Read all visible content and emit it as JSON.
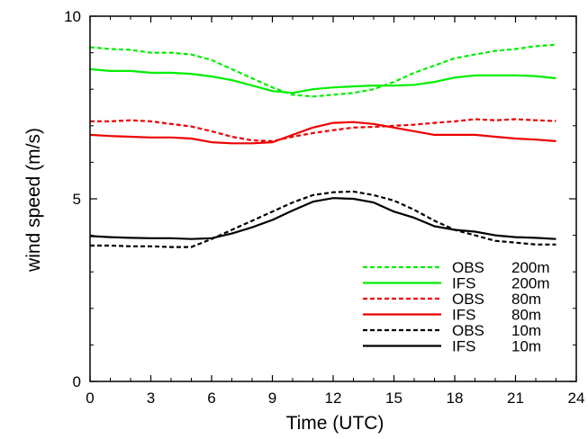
{
  "chart_data": {
    "type": "line",
    "title": "",
    "xlabel": "Time (UTC)",
    "ylabel": "wind speed (m/s)",
    "xlim": [
      0,
      24
    ],
    "ylim": [
      0,
      10
    ],
    "xticks": [
      0,
      3,
      6,
      9,
      12,
      15,
      18,
      21,
      24
    ],
    "yticks": [
      0,
      5,
      10
    ],
    "grid": false,
    "legend_position": "bottom-right",
    "series": [
      {
        "name": "OBS",
        "height": "200m",
        "color": "#00ee00",
        "style": "dashed",
        "x": [
          0,
          1,
          2,
          3,
          4,
          5,
          6,
          7,
          8,
          9,
          10,
          11,
          12,
          13,
          14,
          15,
          16,
          17,
          18,
          19,
          20,
          21,
          22,
          23
        ],
        "y": [
          9.15,
          9.1,
          9.08,
          9.0,
          9.0,
          8.95,
          8.8,
          8.55,
          8.3,
          8.05,
          7.85,
          7.8,
          7.85,
          7.9,
          8.0,
          8.2,
          8.45,
          8.65,
          8.85,
          8.95,
          9.05,
          9.1,
          9.18,
          9.22
        ]
      },
      {
        "name": "IFS",
        "height": "200m",
        "color": "#00ee00",
        "style": "solid",
        "x": [
          0,
          1,
          2,
          3,
          4,
          5,
          6,
          7,
          8,
          9,
          10,
          11,
          12,
          13,
          14,
          15,
          16,
          17,
          18,
          19,
          20,
          21,
          22,
          23
        ],
        "y": [
          8.55,
          8.5,
          8.5,
          8.45,
          8.45,
          8.42,
          8.35,
          8.25,
          8.1,
          7.95,
          7.9,
          8.0,
          8.05,
          8.08,
          8.1,
          8.1,
          8.12,
          8.2,
          8.32,
          8.38,
          8.38,
          8.38,
          8.36,
          8.3
        ]
      },
      {
        "name": "OBS",
        "height": "80m",
        "color": "#ee0000",
        "style": "dashed",
        "x": [
          0,
          1,
          2,
          3,
          4,
          5,
          6,
          7,
          8,
          9,
          10,
          11,
          12,
          13,
          14,
          15,
          16,
          17,
          18,
          19,
          20,
          21,
          22,
          23
        ],
        "y": [
          7.12,
          7.12,
          7.15,
          7.12,
          7.05,
          6.98,
          6.85,
          6.7,
          6.6,
          6.58,
          6.7,
          6.8,
          6.88,
          6.95,
          6.97,
          7.0,
          7.03,
          7.08,
          7.12,
          7.18,
          7.15,
          7.18,
          7.15,
          7.13
        ]
      },
      {
        "name": "IFS",
        "height": "80m",
        "color": "#ee0000",
        "style": "solid",
        "x": [
          0,
          1,
          2,
          3,
          4,
          5,
          6,
          7,
          8,
          9,
          10,
          11,
          12,
          13,
          14,
          15,
          16,
          17,
          18,
          19,
          20,
          21,
          22,
          23
        ],
        "y": [
          6.75,
          6.72,
          6.7,
          6.68,
          6.68,
          6.65,
          6.55,
          6.52,
          6.52,
          6.55,
          6.75,
          6.95,
          7.08,
          7.1,
          7.05,
          6.95,
          6.85,
          6.75,
          6.75,
          6.75,
          6.7,
          6.65,
          6.62,
          6.58
        ]
      },
      {
        "name": "OBS",
        "height": "10m",
        "color": "#000000",
        "style": "dashed",
        "x": [
          0,
          1,
          2,
          3,
          4,
          5,
          6,
          7,
          8,
          9,
          10,
          11,
          12,
          13,
          14,
          15,
          16,
          17,
          18,
          19,
          20,
          21,
          22,
          23
        ],
        "y": [
          3.72,
          3.72,
          3.7,
          3.7,
          3.68,
          3.68,
          3.9,
          4.15,
          4.4,
          4.65,
          4.9,
          5.1,
          5.18,
          5.2,
          5.1,
          4.95,
          4.7,
          4.4,
          4.15,
          4.0,
          3.85,
          3.8,
          3.75,
          3.75
        ]
      },
      {
        "name": "IFS",
        "height": "10m",
        "color": "#000000",
        "style": "solid",
        "x": [
          0,
          1,
          2,
          3,
          4,
          5,
          6,
          7,
          8,
          9,
          10,
          11,
          12,
          13,
          14,
          15,
          16,
          17,
          18,
          19,
          20,
          21,
          22,
          23
        ],
        "y": [
          3.98,
          3.95,
          3.93,
          3.92,
          3.92,
          3.9,
          3.92,
          4.05,
          4.22,
          4.42,
          4.68,
          4.92,
          5.02,
          5.0,
          4.9,
          4.65,
          4.48,
          4.25,
          4.15,
          4.1,
          4.0,
          3.95,
          3.93,
          3.9
        ]
      }
    ]
  }
}
